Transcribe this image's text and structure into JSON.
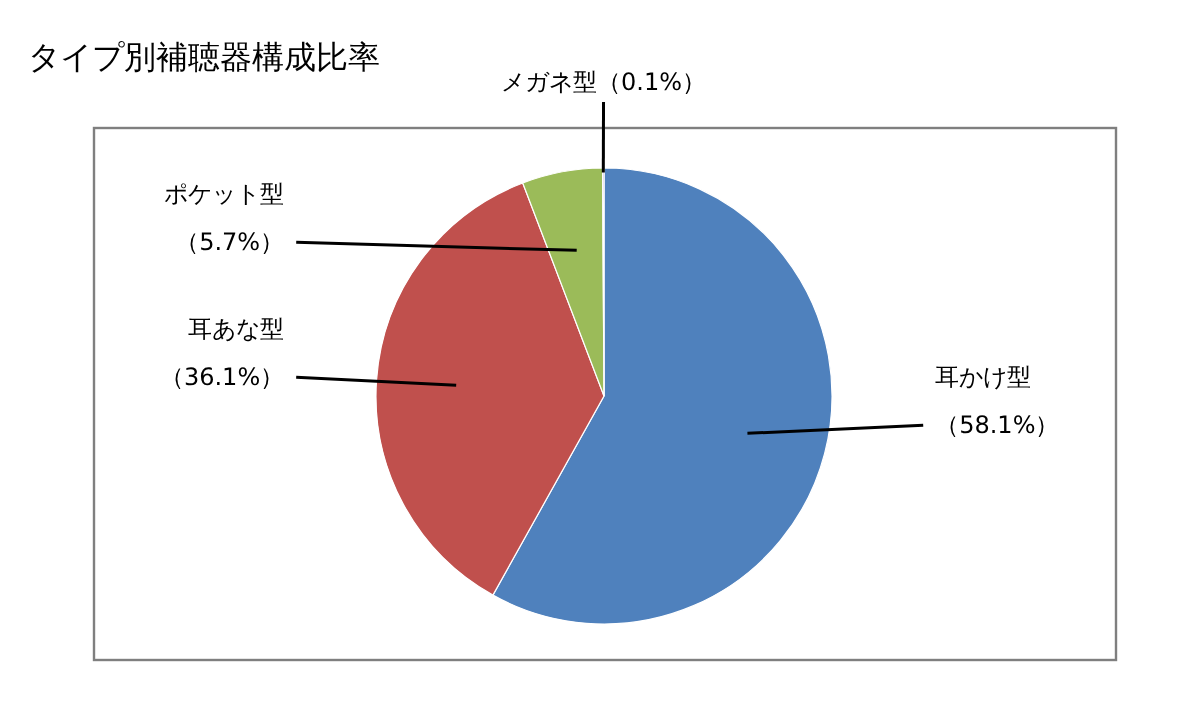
{
  "chart_data": {
    "type": "pie",
    "title": "タイプ別補聴器構成比率",
    "categories": [
      "耳かけ型",
      "耳あな型",
      "ポケット型",
      "メガネ型"
    ],
    "values": [
      58.1,
      36.1,
      5.7,
      0.1
    ],
    "colors": [
      "#4f81bd",
      "#c0504d",
      "#9bbb59",
      "#8064a2"
    ],
    "value_labels": [
      "（58.1%）",
      "（36.1%）",
      "（5.7%）",
      "（0.1%）"
    ],
    "legend": false
  }
}
